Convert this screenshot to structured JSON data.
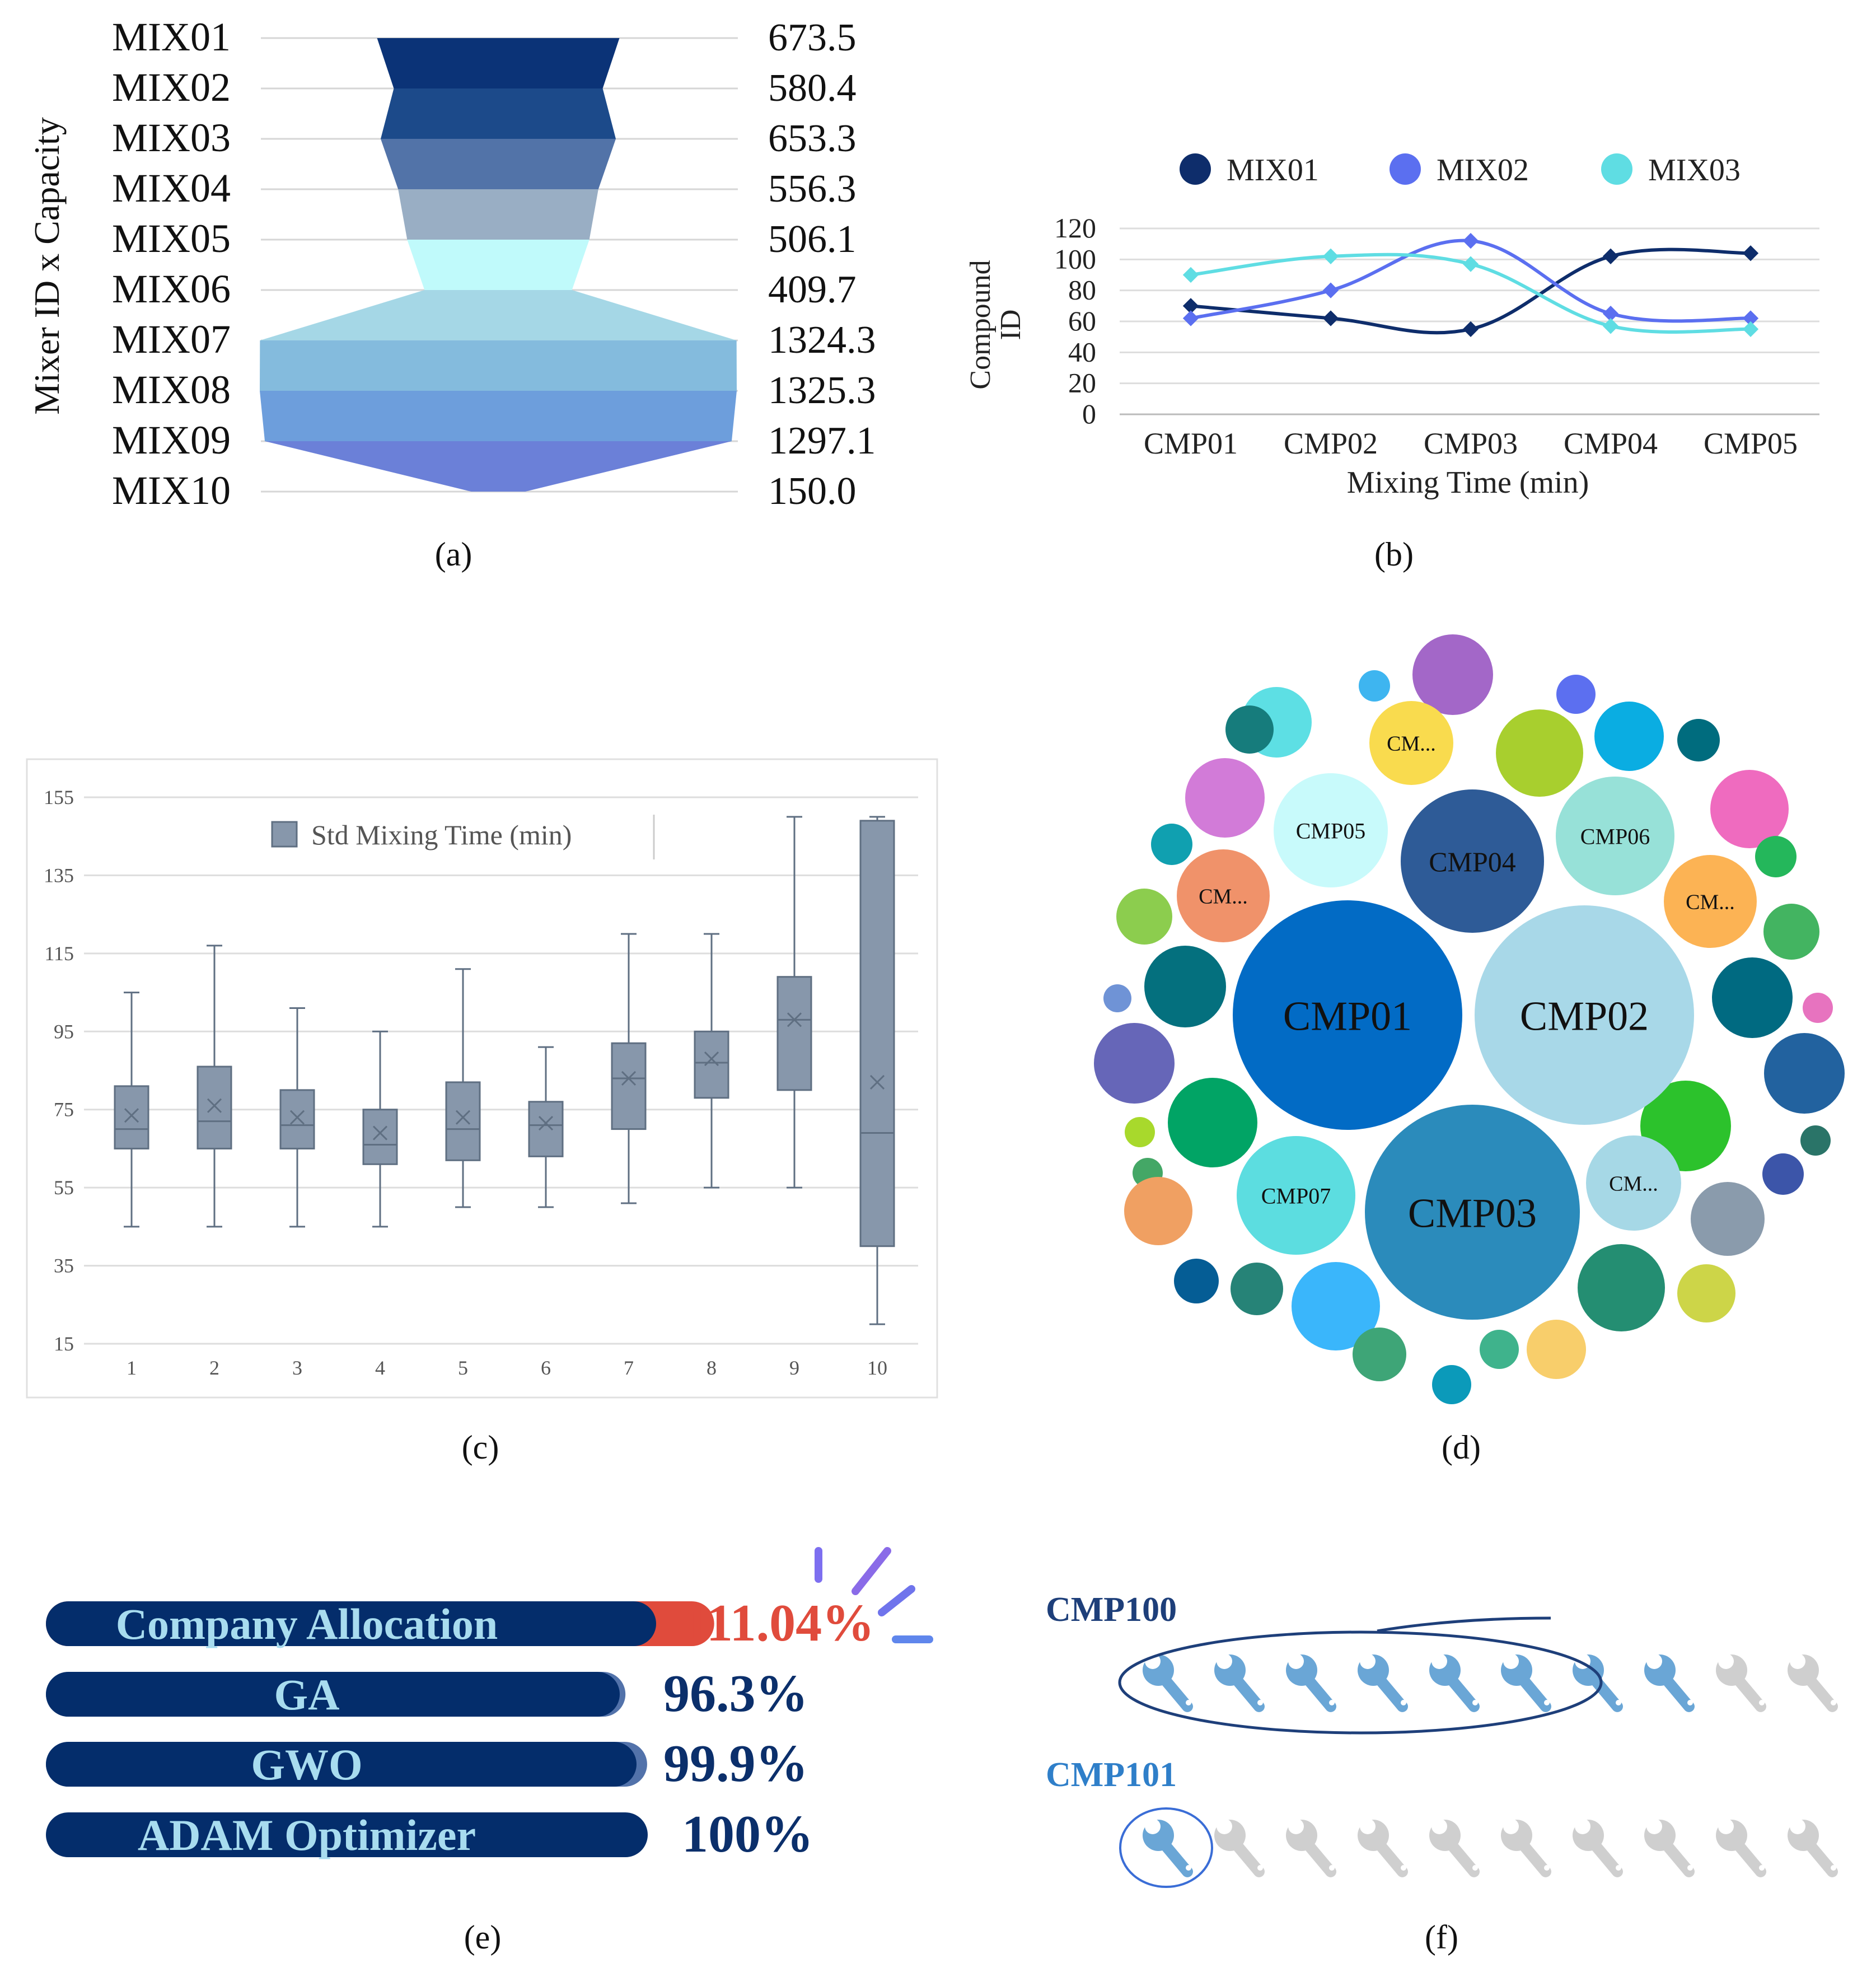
{
  "colors": {
    "navy": "#0b2f6b",
    "dark_navy": "#042d6b",
    "accent_red": "#e04b3c",
    "light_text": "#a8dcef",
    "box_fill": "#8797ab",
    "box_stroke": "#5f6f82"
  },
  "chart_data": [
    {
      "id": "a",
      "type": "bar",
      "subtype": "funnel",
      "caption": "(a)",
      "ylabel": "Mixer ID x Capacity",
      "categories": [
        "MIX01",
        "MIX02",
        "MIX03",
        "MIX04",
        "MIX05",
        "MIX06",
        "MIX07",
        "MIX08",
        "MIX09",
        "MIX10"
      ],
      "values": [
        673.5,
        580.4,
        653.3,
        556.3,
        506.1,
        409.7,
        1324.3,
        1325.3,
        1297.1,
        150.0
      ],
      "value_labels": [
        "673.5",
        "580.4",
        "653.3",
        "556.3",
        "506.1",
        "409.7",
        "1324.3",
        "1325.3",
        "1297.1",
        "150.0"
      ],
      "colors": [
        "#0b3377",
        "#1c4a8a",
        "#5273a8",
        "#99aec4",
        "#c0fafb",
        "#a5d7e6",
        "#84bbdd",
        "#6d9edc",
        "#6b80d8",
        "#ffffff"
      ],
      "grid": true
    },
    {
      "id": "b",
      "type": "line",
      "caption": "(b)",
      "categories": [
        "CMP01",
        "CMP02",
        "CMP03",
        "CMP04",
        "CMP05"
      ],
      "xlabel": "Mixing Time (min)",
      "ylabel_lines": [
        "Compound",
        "ID"
      ],
      "ylim": [
        0,
        120
      ],
      "yticks": [
        0,
        20,
        40,
        60,
        80,
        100,
        120
      ],
      "legend_position": "top",
      "grid": true,
      "series": [
        {
          "name": "MIX01",
          "values": [
            70,
            62,
            55,
            102,
            104
          ],
          "color": "#0e2d6b"
        },
        {
          "name": "MIX02",
          "values": [
            62,
            80,
            112,
            65,
            62
          ],
          "color": "#5b6ff0"
        },
        {
          "name": "MIX03",
          "values": [
            90,
            102,
            97,
            57,
            55
          ],
          "color": "#5fdde3"
        }
      ]
    },
    {
      "id": "c",
      "type": "box",
      "caption": "(c)",
      "legend": "Std Mixing Time (min)",
      "legend_position": "top",
      "categories": [
        "1",
        "2",
        "3",
        "4",
        "5",
        "6",
        "7",
        "8",
        "9",
        "10"
      ],
      "ylim": [
        15,
        155
      ],
      "yticks": [
        15,
        35,
        55,
        75,
        95,
        115,
        135,
        155
      ],
      "grid": true,
      "boxes": [
        {
          "min": 45,
          "q1": 65,
          "median": 70,
          "q3": 81,
          "max": 105,
          "mean": 73.5
        },
        {
          "min": 45,
          "q1": 65,
          "median": 72,
          "q3": 86,
          "max": 117,
          "mean": 76
        },
        {
          "min": 45,
          "q1": 65,
          "median": 71,
          "q3": 80,
          "max": 101,
          "mean": 73
        },
        {
          "min": 45,
          "q1": 61,
          "median": 66,
          "q3": 75,
          "max": 95,
          "mean": 69
        },
        {
          "min": 50,
          "q1": 62,
          "median": 70,
          "q3": 82,
          "max": 111,
          "mean": 73
        },
        {
          "min": 50,
          "q1": 63,
          "median": 71,
          "q3": 77,
          "max": 91,
          "mean": 71.5
        },
        {
          "min": 51,
          "q1": 70,
          "median": 83,
          "q3": 92,
          "max": 120,
          "mean": 83
        },
        {
          "min": 55,
          "q1": 78,
          "median": 87,
          "q3": 95,
          "max": 120,
          "mean": 88
        },
        {
          "min": 55,
          "q1": 80,
          "median": 98,
          "q3": 109,
          "max": 150,
          "mean": 98
        },
        {
          "min": 20,
          "q1": 40,
          "median": 69,
          "q3": 149,
          "max": 150,
          "mean": 82
        }
      ]
    },
    {
      "id": "d",
      "type": "bubble",
      "caption": "(d)",
      "labeled_bubbles": [
        {
          "label": "CMP01",
          "color": "#026bc5"
        },
        {
          "label": "CMP02",
          "color": "#a8d8e8"
        },
        {
          "label": "CMP03",
          "color": "#2b8bbb"
        },
        {
          "label": "CMP04",
          "color": "#2e5b97"
        },
        {
          "label": "CMP05",
          "color": "#c8fafb"
        },
        {
          "label": "CMP06",
          "color": "#97e1d8"
        },
        {
          "label": "CMP07",
          "color": "#5cdde0"
        },
        {
          "label": "CM...",
          "color": "#f9db4e"
        },
        {
          "label": "CM...",
          "color": "#f0926a"
        },
        {
          "label": "CM...",
          "color": "#fcb354"
        },
        {
          "label": "CM...",
          "color": "#a6d8e6"
        }
      ]
    },
    {
      "id": "e",
      "type": "bar",
      "subtype": "progress",
      "caption": "(e)",
      "categories": [
        "Company Allocation",
        "GA",
        "GWO",
        "ADAM Optimizer"
      ],
      "values": [
        111.04,
        96.3,
        99.9,
        100
      ],
      "value_labels": [
        "111.04%",
        "96.3%",
        "99.9%",
        "100%"
      ],
      "value_colors": [
        "#e04b3c",
        "#0b2f6b",
        "#0b2f6b",
        "#0b2f6b"
      ]
    },
    {
      "id": "f",
      "type": "pictograph",
      "caption": "(f)",
      "rows": [
        {
          "label": "CMP100",
          "filled": 8,
          "total": 10,
          "label_color": "#1e3f7a"
        },
        {
          "label": "CMP101",
          "filled": 1,
          "total": 10,
          "label_color": "#2f7fc9"
        }
      ],
      "icon": "wrench-icon",
      "filled_color": "#6aa6d6",
      "empty_color": "#cfcfcf"
    }
  ]
}
